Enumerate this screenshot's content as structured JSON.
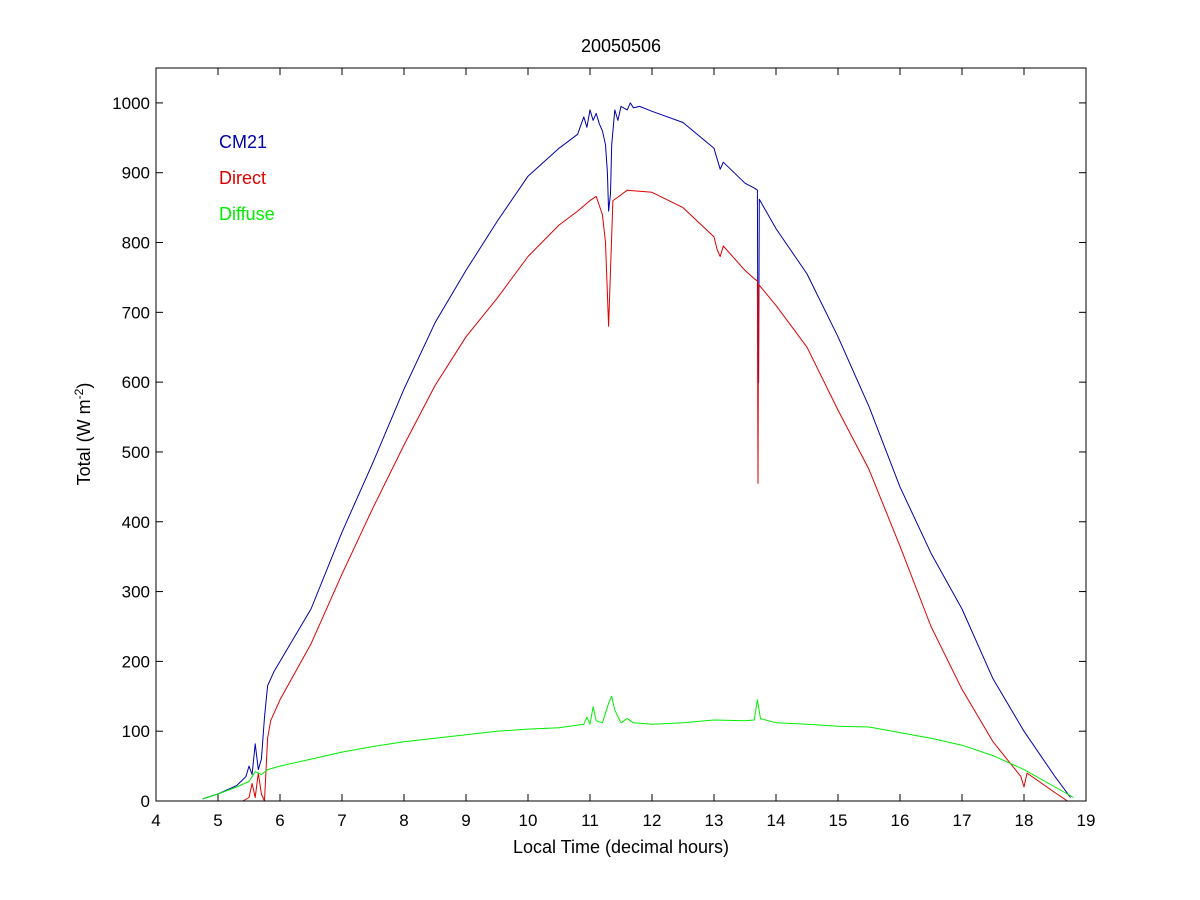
{
  "chart_data": {
    "type": "line",
    "title": "20050506",
    "xlabel": "Local Time (decimal hours)",
    "ylabel": {
      "main": "Total (W m",
      "sup": "-2",
      "close": ")"
    },
    "xlim": [
      4,
      19
    ],
    "ylim": [
      0,
      1050
    ],
    "xticks": [
      4,
      5,
      6,
      7,
      8,
      9,
      10,
      11,
      12,
      13,
      14,
      15,
      16,
      17,
      18,
      19
    ],
    "yticks": [
      0,
      100,
      200,
      300,
      400,
      500,
      600,
      700,
      800,
      900,
      1000
    ],
    "grid": false,
    "legend_position": "top-left",
    "series": [
      {
        "name": "CM21",
        "color": "#0000aa",
        "points": [
          [
            4.75,
            3
          ],
          [
            5.0,
            10
          ],
          [
            5.3,
            22
          ],
          [
            5.45,
            35
          ],
          [
            5.5,
            50
          ],
          [
            5.55,
            38
          ],
          [
            5.6,
            82
          ],
          [
            5.65,
            45
          ],
          [
            5.7,
            60
          ],
          [
            5.75,
            120
          ],
          [
            5.8,
            165
          ],
          [
            5.9,
            185
          ],
          [
            6.0,
            200
          ],
          [
            6.5,
            275
          ],
          [
            7.0,
            385
          ],
          [
            7.5,
            485
          ],
          [
            8.0,
            590
          ],
          [
            8.5,
            685
          ],
          [
            9.0,
            760
          ],
          [
            9.5,
            830
          ],
          [
            10.0,
            895
          ],
          [
            10.5,
            935
          ],
          [
            10.8,
            955
          ],
          [
            10.9,
            980
          ],
          [
            10.95,
            965
          ],
          [
            11.0,
            990
          ],
          [
            11.05,
            975
          ],
          [
            11.1,
            985
          ],
          [
            11.15,
            970
          ],
          [
            11.2,
            960
          ],
          [
            11.25,
            940
          ],
          [
            11.28,
            900
          ],
          [
            11.3,
            845
          ],
          [
            11.33,
            870
          ],
          [
            11.35,
            940
          ],
          [
            11.4,
            990
          ],
          [
            11.45,
            975
          ],
          [
            11.5,
            995
          ],
          [
            11.6,
            990
          ],
          [
            11.65,
            1000
          ],
          [
            11.7,
            993
          ],
          [
            11.8,
            995
          ],
          [
            12.0,
            988
          ],
          [
            12.5,
            972
          ],
          [
            13.0,
            935
          ],
          [
            13.05,
            920
          ],
          [
            13.1,
            905
          ],
          [
            13.15,
            915
          ],
          [
            13.5,
            885
          ],
          [
            13.65,
            878
          ],
          [
            13.7,
            875
          ],
          [
            13.71,
            600
          ],
          [
            13.72,
            600
          ],
          [
            13.73,
            862
          ],
          [
            14.0,
            820
          ],
          [
            14.5,
            755
          ],
          [
            15.0,
            665
          ],
          [
            15.5,
            565
          ],
          [
            16.0,
            450
          ],
          [
            16.5,
            355
          ],
          [
            17.0,
            275
          ],
          [
            17.5,
            175
          ],
          [
            18.0,
            100
          ],
          [
            18.5,
            35
          ],
          [
            18.75,
            5
          ]
        ]
      },
      {
        "name": "Direct",
        "color": "#dd0000",
        "points": [
          [
            5.4,
            0
          ],
          [
            5.5,
            5
          ],
          [
            5.55,
            25
          ],
          [
            5.6,
            5
          ],
          [
            5.65,
            40
          ],
          [
            5.7,
            10
          ],
          [
            5.75,
            0
          ],
          [
            5.8,
            90
          ],
          [
            5.85,
            115
          ],
          [
            6.0,
            145
          ],
          [
            6.5,
            225
          ],
          [
            7.0,
            325
          ],
          [
            7.5,
            420
          ],
          [
            8.0,
            510
          ],
          [
            8.5,
            595
          ],
          [
            9.0,
            665
          ],
          [
            9.5,
            720
          ],
          [
            10.0,
            780
          ],
          [
            10.5,
            825
          ],
          [
            10.8,
            845
          ],
          [
            11.0,
            860
          ],
          [
            11.1,
            866
          ],
          [
            11.2,
            840
          ],
          [
            11.25,
            800
          ],
          [
            11.3,
            680
          ],
          [
            11.33,
            760
          ],
          [
            11.37,
            860
          ],
          [
            11.45,
            865
          ],
          [
            11.6,
            875
          ],
          [
            12.0,
            872
          ],
          [
            12.5,
            850
          ],
          [
            13.0,
            808
          ],
          [
            13.05,
            790
          ],
          [
            13.1,
            780
          ],
          [
            13.15,
            795
          ],
          [
            13.5,
            760
          ],
          [
            13.65,
            748
          ],
          [
            13.7,
            745
          ],
          [
            13.71,
            455
          ],
          [
            13.72,
            740
          ],
          [
            14.0,
            710
          ],
          [
            14.5,
            650
          ],
          [
            15.0,
            560
          ],
          [
            15.5,
            475
          ],
          [
            16.0,
            365
          ],
          [
            16.5,
            250
          ],
          [
            17.0,
            160
          ],
          [
            17.5,
            85
          ],
          [
            17.95,
            35
          ],
          [
            18.0,
            20
          ],
          [
            18.05,
            40
          ],
          [
            18.5,
            12
          ],
          [
            18.7,
            0
          ]
        ]
      },
      {
        "name": "Diffuse",
        "color": "#00ee00",
        "points": [
          [
            4.75,
            3
          ],
          [
            5.0,
            10
          ],
          [
            5.3,
            20
          ],
          [
            5.5,
            28
          ],
          [
            5.6,
            42
          ],
          [
            5.7,
            38
          ],
          [
            5.8,
            45
          ],
          [
            6.0,
            50
          ],
          [
            6.5,
            60
          ],
          [
            7.0,
            70
          ],
          [
            7.5,
            78
          ],
          [
            8.0,
            85
          ],
          [
            8.5,
            90
          ],
          [
            9.0,
            95
          ],
          [
            9.5,
            100
          ],
          [
            10.0,
            103
          ],
          [
            10.5,
            105
          ],
          [
            10.9,
            110
          ],
          [
            10.95,
            120
          ],
          [
            11.0,
            110
          ],
          [
            11.05,
            135
          ],
          [
            11.1,
            115
          ],
          [
            11.2,
            112
          ],
          [
            11.3,
            140
          ],
          [
            11.35,
            150
          ],
          [
            11.4,
            130
          ],
          [
            11.5,
            112
          ],
          [
            11.6,
            118
          ],
          [
            11.7,
            112
          ],
          [
            12.0,
            110
          ],
          [
            12.5,
            112
          ],
          [
            13.0,
            116
          ],
          [
            13.5,
            115
          ],
          [
            13.65,
            116
          ],
          [
            13.7,
            145
          ],
          [
            13.75,
            118
          ],
          [
            14.0,
            112
          ],
          [
            14.5,
            110
          ],
          [
            15.0,
            107
          ],
          [
            15.5,
            106
          ],
          [
            16.0,
            98
          ],
          [
            16.5,
            90
          ],
          [
            17.0,
            80
          ],
          [
            17.5,
            65
          ],
          [
            18.0,
            45
          ],
          [
            18.5,
            20
          ],
          [
            18.8,
            5
          ]
        ]
      }
    ]
  }
}
